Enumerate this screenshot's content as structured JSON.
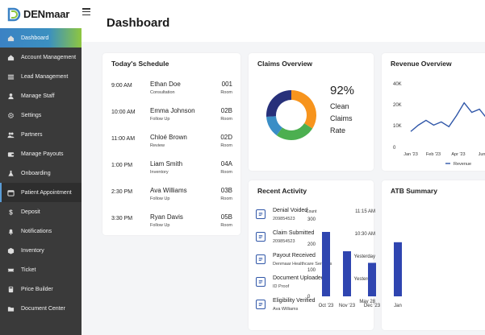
{
  "brand": {
    "name": "DENmaar"
  },
  "sidebar": {
    "items": [
      {
        "label": "Dashboard",
        "icon": "home-icon"
      },
      {
        "label": "Account Management",
        "icon": "home-icon"
      },
      {
        "label": "Lead Management",
        "icon": "list-icon"
      },
      {
        "label": "Manage Staff",
        "icon": "user-icon"
      },
      {
        "label": "Settings",
        "icon": "gear-icon"
      },
      {
        "label": "Partners",
        "icon": "users-icon"
      },
      {
        "label": "Manage Payouts",
        "icon": "wallet-icon"
      },
      {
        "label": "Onboarding",
        "icon": "flask-icon"
      },
      {
        "label": "Patient Appointment",
        "icon": "calendar-icon"
      },
      {
        "label": "Deposit",
        "icon": "dollar-icon"
      },
      {
        "label": "Notifications",
        "icon": "bell-icon"
      },
      {
        "label": "Inventory",
        "icon": "box-icon"
      },
      {
        "label": "Ticket",
        "icon": "ticket-icon"
      },
      {
        "label": "Price Builder",
        "icon": "calculator-icon"
      },
      {
        "label": "Document Center",
        "icon": "folder-icon"
      }
    ]
  },
  "page": {
    "title": "Dashboard"
  },
  "schedule": {
    "title": "Today's Schedule",
    "rows": [
      {
        "time": "9:00 AM",
        "name": "Ethan Doe",
        "type": "Consultation",
        "room": "001",
        "room_label": "Room"
      },
      {
        "time": "10:00 AM",
        "name": "Emma Johnson",
        "type": "Follow Up",
        "room": "02B",
        "room_label": "Room"
      },
      {
        "time": "11:00 AM",
        "name": "Chloé Brown",
        "type": "Review",
        "room": "02D",
        "room_label": "Room"
      },
      {
        "time": "1:00 PM",
        "name": "Liam Smith",
        "type": "Inventory",
        "room": "04A",
        "room_label": "Room"
      },
      {
        "time": "2:30 PM",
        "name": "Ava Williams",
        "type": "Follow Up",
        "room": "03B",
        "room_label": "Room"
      },
      {
        "time": "3:30 PM",
        "name": "Ryan Davis",
        "type": "Follow Up",
        "room": "05B",
        "room_label": "Room"
      }
    ]
  },
  "claims": {
    "title": "Claims Overview",
    "percent": "92%",
    "label": "Clean Claims Rate",
    "segments": [
      {
        "value": 34,
        "color": "#f7941d"
      },
      {
        "value": 26,
        "color": "#4caf50"
      },
      {
        "value": 14,
        "color": "#3a8ec6"
      },
      {
        "value": 26,
        "color": "#27307a"
      }
    ]
  },
  "revenue": {
    "title": "Revenue Overview",
    "chart_data": {
      "type": "line",
      "x_ticks": [
        "Jan '23",
        "Feb '23",
        "Apr '23",
        "Jun"
      ],
      "y_ticks": [
        "40K",
        "20K",
        "10K",
        "0"
      ],
      "y": [
        10,
        14,
        17,
        14,
        16,
        13,
        20,
        28,
        22,
        24,
        18,
        20
      ],
      "ylim": [
        0,
        40
      ],
      "legend": "Revenue",
      "color": "#2f56a8"
    }
  },
  "activity": {
    "title": "Recent Activity",
    "rows": [
      {
        "title": "Denial Voided",
        "sub": "209854523",
        "time": "11:15 AM"
      },
      {
        "title": "Claim Submitted",
        "sub": "209854523",
        "time": "10:30 AM"
      },
      {
        "title": "Payout Received",
        "sub": "Denmaar Healthcare Services",
        "time": "Yesterday"
      },
      {
        "title": "Document Uploaded",
        "sub": "ID Proof",
        "time": "Yesterday"
      },
      {
        "title": "Eligibility Verified",
        "sub": "Ava Williams",
        "time": "May 28"
      }
    ]
  },
  "atb": {
    "title": "ATB Summary",
    "chart_data": {
      "type": "bar",
      "y_axis_label": "Count",
      "y_ticks": [
        "300",
        "200",
        "100",
        "0"
      ],
      "categories": [
        "Oct '23",
        "Nov '23",
        "Dec '23",
        "Jan"
      ],
      "values": [
        250,
        175,
        130,
        210
      ],
      "ylim": [
        0,
        300
      ],
      "color": "#2f45b0"
    }
  }
}
